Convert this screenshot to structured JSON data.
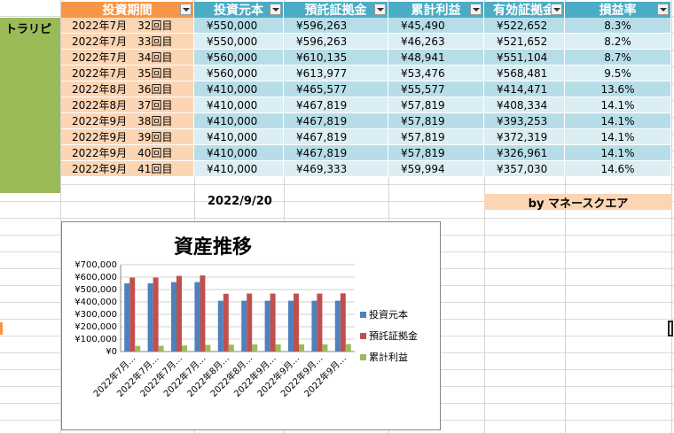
{
  "sheet": {
    "headers": [
      {
        "label": "投資期間",
        "style": "orange"
      },
      {
        "label": "投資元本",
        "style": "blue"
      },
      {
        "label": "預託証拠金",
        "style": "blue"
      },
      {
        "label": "累計利益",
        "style": "blue"
      },
      {
        "label": "有効証拠金",
        "style": "blue"
      },
      {
        "label": "損益率",
        "style": "blue"
      }
    ],
    "group_label": "トラリピ",
    "rows": [
      {
        "period": "2022年7月　32回目",
        "principal": "¥550,000",
        "deposit": "¥596,263",
        "profit": "¥45,490",
        "effective": "¥522,652",
        "rate": "8.3%"
      },
      {
        "period": "2022年7月　33回目",
        "principal": "¥550,000",
        "deposit": "¥596,263",
        "profit": "¥46,263",
        "effective": "¥521,652",
        "rate": "8.2%"
      },
      {
        "period": "2022年7月　34回目",
        "principal": "¥560,000",
        "deposit": "¥610,135",
        "profit": "¥48,941",
        "effective": "¥551,104",
        "rate": "8.7%"
      },
      {
        "period": "2022年7月　35回目",
        "principal": "¥560,000",
        "deposit": "¥613,977",
        "profit": "¥53,476",
        "effective": "¥568,481",
        "rate": "9.5%"
      },
      {
        "period": "2022年8月　36回目",
        "principal": "¥410,000",
        "deposit": "¥465,577",
        "profit": "¥55,577",
        "effective": "¥414,471",
        "rate": "13.6%"
      },
      {
        "period": "2022年8月　37回目",
        "principal": "¥410,000",
        "deposit": "¥467,819",
        "profit": "¥57,819",
        "effective": "¥408,334",
        "rate": "14.1%"
      },
      {
        "period": "2022年9月　38回目",
        "principal": "¥410,000",
        "deposit": "¥467,819",
        "profit": "¥57,819",
        "effective": "¥393,253",
        "rate": "14.1%"
      },
      {
        "period": "2022年9月　39回目",
        "principal": "¥410,000",
        "deposit": "¥467,819",
        "profit": "¥57,819",
        "effective": "¥372,319",
        "rate": "14.1%"
      },
      {
        "period": "2022年9月　40回目",
        "principal": "¥410,000",
        "deposit": "¥467,819",
        "profit": "¥57,819",
        "effective": "¥326,961",
        "rate": "14.1%"
      },
      {
        "period": "2022年9月　41回目",
        "principal": "¥410,000",
        "deposit": "¥469,333",
        "profit": "¥59,994",
        "effective": "¥357,030",
        "rate": "14.6%"
      }
    ],
    "date": "2022/9/20",
    "credit": "by マネースクエア"
  },
  "colors": {
    "header_blue": "#4bacc6",
    "header_orange": "#f79646",
    "row_dark": "#b7dee8",
    "row_light": "#dbeef3",
    "period_fill": "#fcd5b4",
    "group_green": "#9bbb59"
  },
  "chart_data": {
    "type": "bar",
    "title": "資産推移",
    "categories": [
      "2022年7月…",
      "2022年7月…",
      "2022年7月…",
      "2022年7月…",
      "2022年8月…",
      "2022年8月…",
      "2022年9月…",
      "2022年9月…",
      "2022年9月…",
      "2022年9月…"
    ],
    "series": [
      {
        "name": "投資元本",
        "color": "#4f81bd",
        "values": [
          550000,
          550000,
          560000,
          560000,
          410000,
          410000,
          410000,
          410000,
          410000,
          410000
        ]
      },
      {
        "name": "預託証拠金",
        "color": "#c0504d",
        "values": [
          596263,
          596263,
          610135,
          613977,
          465577,
          467819,
          467819,
          467819,
          467819,
          469333
        ]
      },
      {
        "name": "累計利益",
        "color": "#9bbb59",
        "values": [
          45490,
          46263,
          48941,
          53476,
          55577,
          57819,
          57819,
          57819,
          57819,
          59994
        ]
      }
    ],
    "ylim": [
      0,
      700000
    ],
    "yticks": [
      "¥0",
      "¥100,000",
      "¥200,000",
      "¥300,000",
      "¥400,000",
      "¥500,000",
      "¥600,000",
      "¥700,000"
    ],
    "grid": true,
    "legend": "right"
  }
}
